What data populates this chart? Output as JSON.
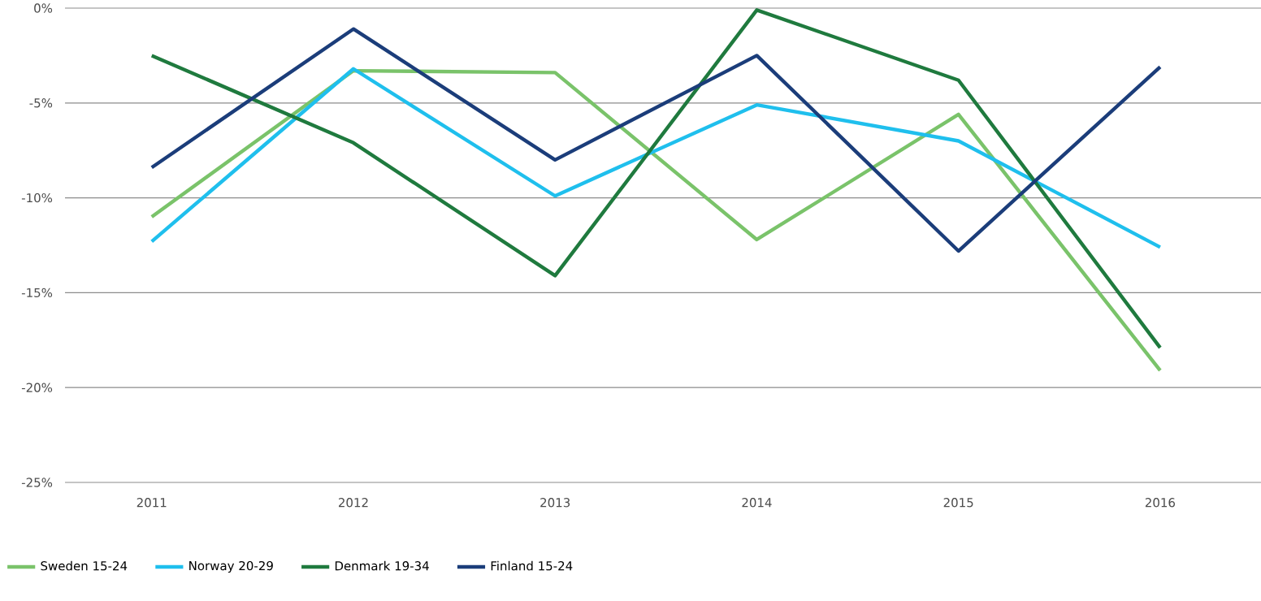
{
  "chart_data": {
    "type": "line",
    "categories": [
      "2011",
      "2012",
      "2013",
      "2014",
      "2015",
      "2016"
    ],
    "series": [
      {
        "name": "Sweden 15-24",
        "color": "#7ac36a",
        "values": [
          -11.0,
          -3.3,
          -3.4,
          -12.2,
          -5.6,
          -19.1
        ]
      },
      {
        "name": "Norway 20-29",
        "color": "#1fbfed",
        "values": [
          -12.3,
          -3.2,
          -9.9,
          -5.1,
          -7.0,
          -12.6
        ]
      },
      {
        "name": "Denmark 19-34",
        "color": "#1f7a3e",
        "values": [
          -2.5,
          -7.1,
          -14.1,
          -0.1,
          -3.8,
          -17.9
        ]
      },
      {
        "name": "Finland 15-24",
        "color": "#1b3d7a",
        "values": [
          -8.4,
          -1.1,
          -8.0,
          -2.5,
          -12.8,
          -3.1
        ]
      }
    ],
    "ylim": [
      -25,
      0
    ],
    "yticks": [
      {
        "value": -25,
        "label": "-25%"
      },
      {
        "value": -20,
        "label": "-20%"
      },
      {
        "value": -15,
        "label": "-15%"
      },
      {
        "value": -10,
        "label": "-10%"
      },
      {
        "value": -5,
        "label": "-5%"
      },
      {
        "value": 0,
        "label": "0%"
      }
    ],
    "grid": "y",
    "legend": "bottom left",
    "marker": "none",
    "line_style": "solid"
  }
}
